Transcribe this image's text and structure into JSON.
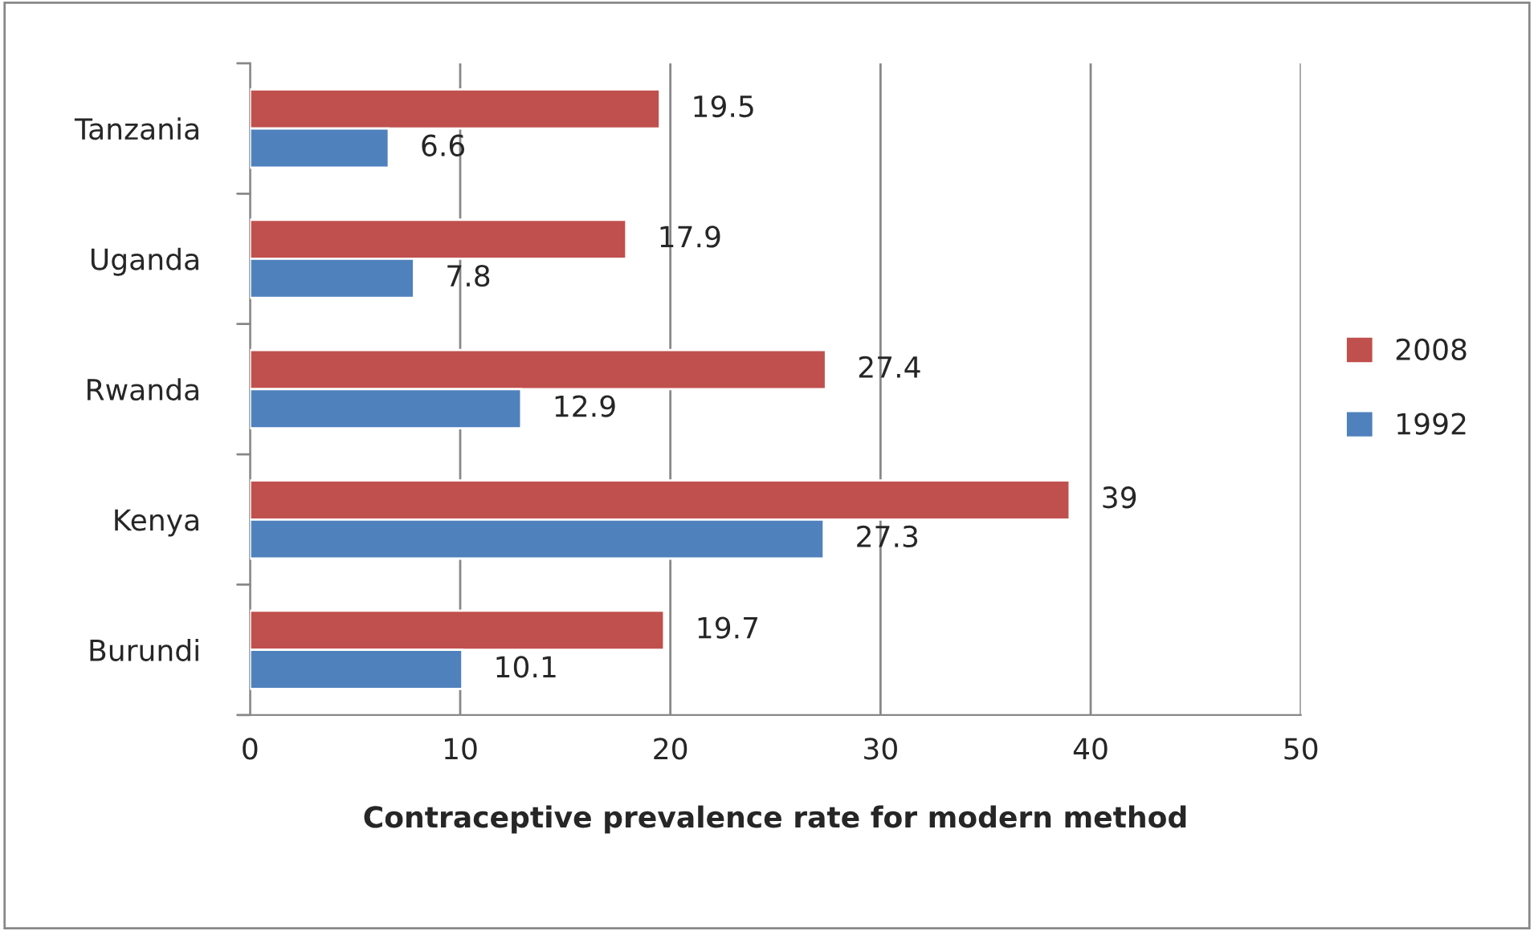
{
  "chart_data": {
    "type": "bar",
    "orientation": "horizontal",
    "xlabel": "Contraceptive prevalence rate for modern method",
    "categories": [
      "Tanzania",
      "Uganda",
      "Rwanda",
      "Kenya",
      "Burundi"
    ],
    "series": [
      {
        "name": "2008",
        "color": "#c0504d",
        "values": [
          19.5,
          17.9,
          27.4,
          39,
          19.7
        ]
      },
      {
        "name": "1992",
        "color": "#4f81bd",
        "values": [
          6.6,
          7.8,
          12.9,
          27.3,
          10.1
        ]
      }
    ],
    "xlim": [
      0,
      50
    ],
    "xticks": [
      0,
      10,
      20,
      30,
      40,
      50
    ],
    "grid": "x",
    "legend": "right",
    "data_labels": true
  }
}
